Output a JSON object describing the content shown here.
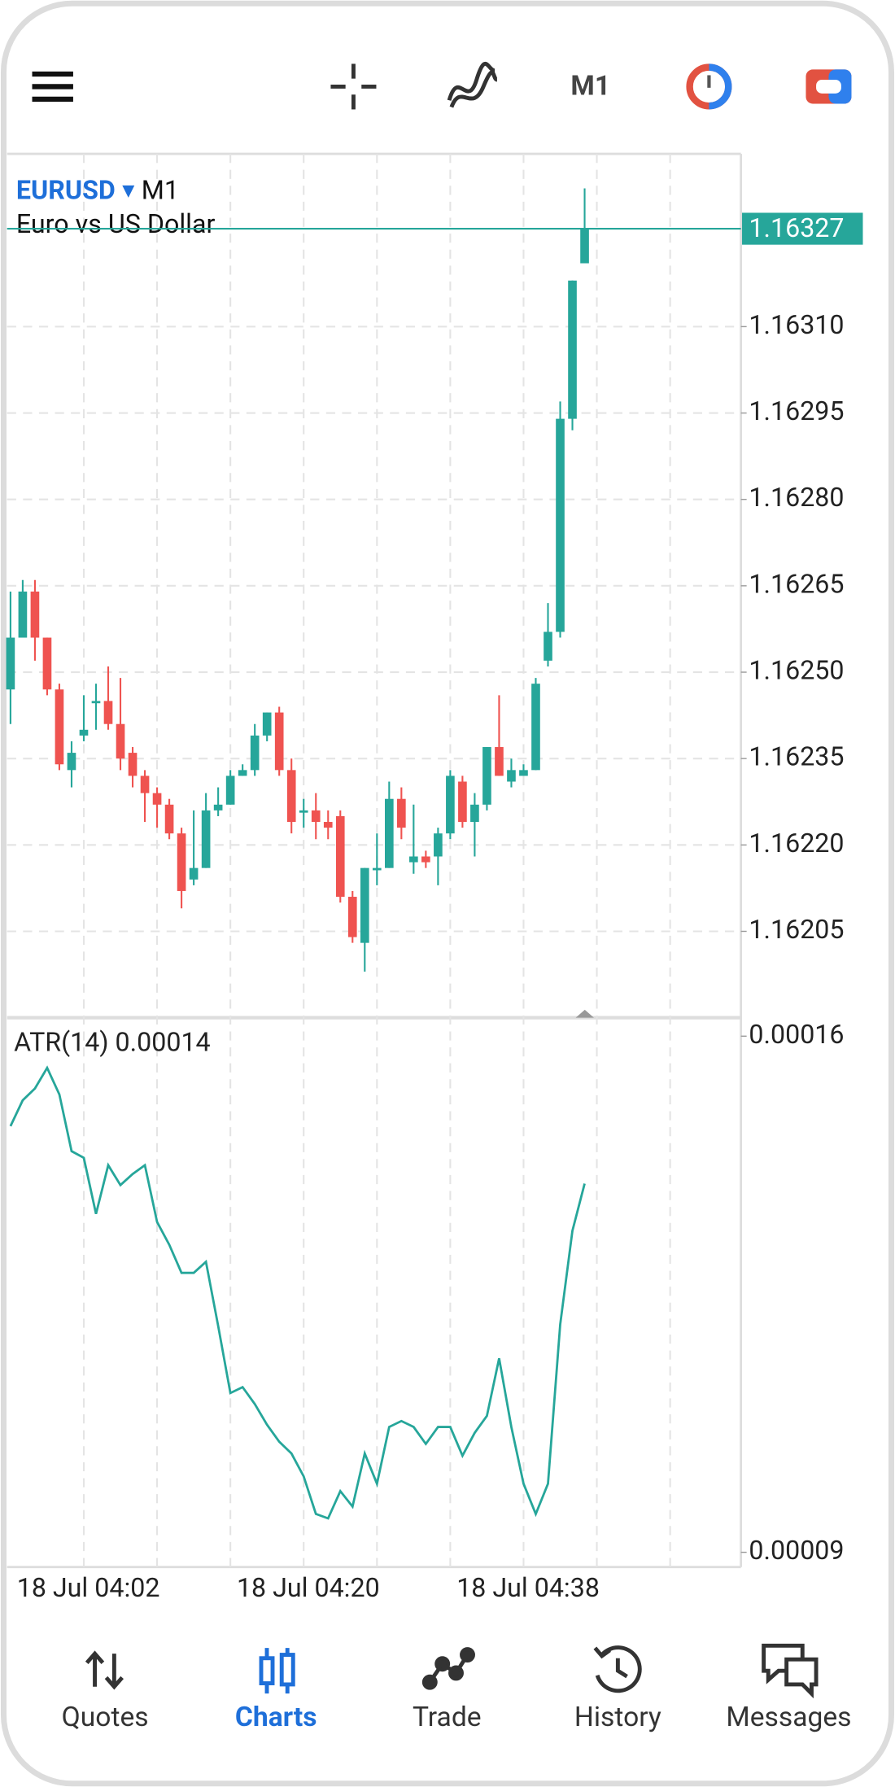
{
  "toolbar": {
    "timeframe": "M1"
  },
  "chart_data": {
    "type": "candlestick",
    "symbol": "EURUSD",
    "timeframe": "M1",
    "description": "Euro vs US Dollar",
    "categories": [
      null,
      null,
      null,
      null,
      null,
      null,
      "18 Jul 04:02",
      null,
      null,
      null,
      null,
      null,
      null,
      null,
      null,
      null,
      null,
      null,
      null,
      null,
      null,
      null,
      null,
      null,
      "18 Jul 04:20",
      null,
      null,
      null,
      null,
      null,
      null,
      null,
      null,
      null,
      null,
      null,
      null,
      null,
      null,
      null,
      null,
      null,
      "18 Jul 04:38",
      null,
      null,
      null,
      null,
      null
    ],
    "open": [
      1.16247,
      1.16256,
      1.16264,
      1.16256,
      1.16247,
      1.16233,
      1.16239,
      1.16245,
      1.16245,
      1.16241,
      1.16236,
      1.16232,
      1.16229,
      1.16227,
      1.16222,
      1.16214,
      1.16216,
      1.16226,
      1.16227,
      1.16232,
      1.16233,
      1.16239,
      1.16243,
      1.16233,
      1.16226,
      1.16226,
      1.16224,
      1.16225,
      1.16211,
      1.16203,
      1.16216,
      1.16216,
      1.16228,
      1.16217,
      1.16218,
      1.16218,
      1.16222,
      1.16231,
      1.16224,
      1.16227,
      1.16237,
      1.16231,
      1.16232,
      1.16233,
      1.16252,
      1.16257,
      1.16294,
      1.16321
    ],
    "high": [
      1.16264,
      1.16266,
      1.16266,
      1.16256,
      1.16248,
      1.16238,
      1.16246,
      1.16248,
      1.16251,
      1.16249,
      1.16237,
      1.16233,
      1.1623,
      1.16228,
      1.16223,
      1.16226,
      1.16229,
      1.1623,
      1.16233,
      1.16234,
      1.16241,
      1.16243,
      1.16244,
      1.16235,
      1.16228,
      1.16229,
      1.16226,
      1.16226,
      1.16212,
      1.16216,
      1.16222,
      1.16231,
      1.1623,
      1.16227,
      1.16219,
      1.16223,
      1.16233,
      1.16232,
      1.16229,
      1.16237,
      1.16246,
      1.16235,
      1.16234,
      1.16249,
      1.16262,
      1.16297,
      1.16318,
      1.16334
    ],
    "low": [
      1.16241,
      1.16256,
      1.16252,
      1.16246,
      1.16233,
      1.1623,
      1.16238,
      1.1624,
      1.1624,
      1.16233,
      1.1623,
      1.16224,
      1.16223,
      1.16221,
      1.16209,
      1.16213,
      1.16216,
      1.16225,
      1.16227,
      1.16232,
      1.16232,
      1.16238,
      1.16232,
      1.16222,
      1.16223,
      1.16221,
      1.16221,
      1.1621,
      1.16203,
      1.16198,
      1.16213,
      1.16216,
      1.16221,
      1.16215,
      1.16216,
      1.16213,
      1.16221,
      1.16223,
      1.16218,
      1.16226,
      1.16232,
      1.1623,
      1.16232,
      1.16233,
      1.16251,
      1.16256,
      1.16292,
      1.16321
    ],
    "close": [
      1.16256,
      1.16264,
      1.16256,
      1.16247,
      1.16234,
      1.16236,
      1.1624,
      1.16245,
      1.16241,
      1.16235,
      1.16232,
      1.16229,
      1.16227,
      1.16222,
      1.16212,
      1.16216,
      1.16226,
      1.16227,
      1.16232,
      1.16233,
      1.16239,
      1.16243,
      1.16233,
      1.16224,
      1.16226,
      1.16224,
      1.16223,
      1.16211,
      1.16204,
      1.16216,
      1.16216,
      1.16228,
      1.16223,
      1.16218,
      1.16217,
      1.16222,
      1.16232,
      1.16224,
      1.16227,
      1.16237,
      1.16232,
      1.16233,
      1.16233,
      1.16248,
      1.16257,
      1.16294,
      1.16318,
      1.16327
    ],
    "up_color": "#26a69a",
    "down_color": "#ef5350",
    "last_price": 1.16327,
    "ylim": [
      1.1619,
      1.1634
    ],
    "yticks": [
      1.16205,
      {
        "value": 1.1622,
        "label": "1.16220"
      },
      1.16235,
      {
        "value": 1.1625,
        "label": "1.16250"
      },
      1.16265,
      {
        "value": 1.1628,
        "label": "1.16280"
      },
      1.16295,
      {
        "value": 1.1631,
        "label": "1.16310"
      }
    ],
    "grid": true,
    "indicator": {
      "type": "line",
      "label": "ATR(14) 0.00014",
      "color": "#26a69a",
      "values": [
        0.0001478,
        0.0001513,
        0.0001529,
        0.0001557,
        0.0001521,
        0.0001444,
        0.0001435,
        0.0001359,
        0.0001425,
        0.0001398,
        0.0001413,
        0.0001425,
        0.0001348,
        0.0001317,
        0.0001279,
        0.0001279,
        0.0001294,
        0.0001207,
        0.0001116,
        0.0001124,
        0.0001101,
        0.0001073,
        0.000105,
        0.0001034,
        0.0001003,
        9.52e-05,
        9.46e-05,
        9.83e-05,
        9.62e-05,
        0.0001034,
        9.93e-05,
        0.000107,
        0.0001078,
        0.000107,
        0.0001047,
        0.000107,
        0.000107,
        0.0001031,
        0.0001062,
        0.0001085,
        0.0001163,
        0.000107,
        9.93e-05,
        9.52e-05,
        9.93e-05,
        0.0001209,
        0.0001336,
        0.00014
      ],
      "ylim": [
        8.8e-05,
        0.0001625
      ],
      "yticks": [
        0.00016,
        9e-05
      ]
    }
  },
  "nav": {
    "items": [
      "Quotes",
      "Charts",
      "Trade",
      "History",
      "Messages"
    ],
    "active": 1
  }
}
